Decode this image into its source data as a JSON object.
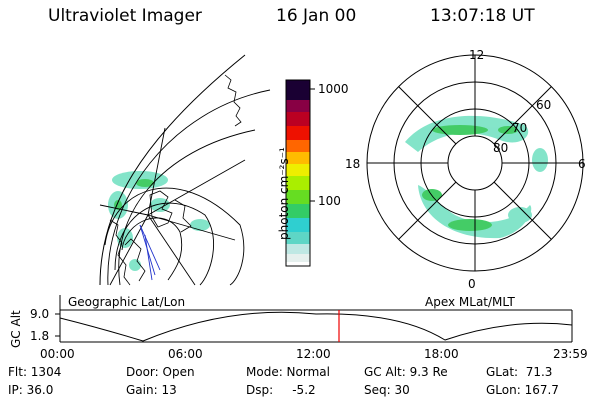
{
  "header": {
    "instrument": "Ultraviolet Imager",
    "date": "16 Jan 00",
    "time": "13:07:18 UT"
  },
  "colorbar": {
    "unit_label": "photon cm⁻²s⁻¹",
    "ticks": [
      "1000",
      "100"
    ]
  },
  "left_panel": {
    "label": "Geographic Lat/Lon"
  },
  "right_panel": {
    "label": "Apex MLat/MLT",
    "mlt_labels": {
      "top": "12",
      "left": "18",
      "right": "6",
      "bottom": "0"
    },
    "lat_labels": [
      "60",
      "70",
      "80"
    ]
  },
  "timeline": {
    "ylabel": "GC Alt",
    "y_ticks": [
      "9.0",
      "1.8"
    ],
    "x_ticks": [
      "00:00",
      "06:00",
      "12:00",
      "18:00",
      "23:59"
    ],
    "current_marker": "13:07"
  },
  "status": {
    "flt": "Flt: 1304",
    "ip": "IP: 36.0",
    "door": "Door: Open",
    "gain": "Gain: 13",
    "mode": "Mode: Normal",
    "dsp": "Dsp:     -5.2",
    "gc_alt": "GC Alt: 9.3 Re",
    "seq": "Seq: 30",
    "glat": "GLat:  71.3",
    "glon": "GLon: 167.7"
  }
}
